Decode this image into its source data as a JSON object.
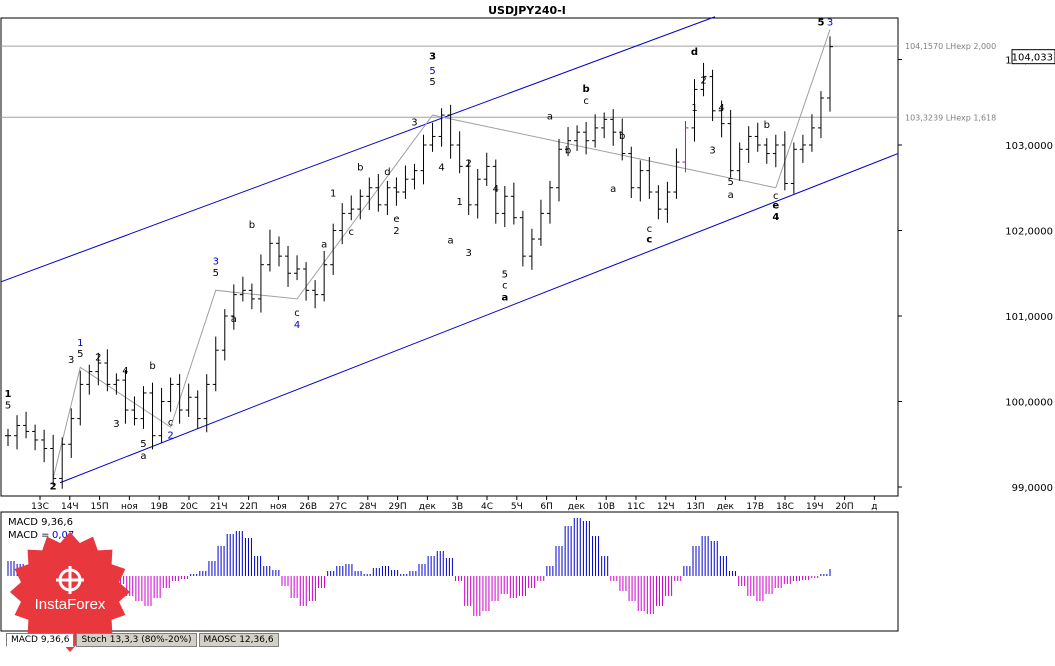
{
  "chart_data": [
    {
      "type": "candlestick",
      "title": "USDJPY240-I",
      "ylim": [
        98.9,
        104.5
      ],
      "price_ticks": [
        "104,0000",
        "103,0000",
        "102,0000",
        "101,0000",
        "100,0000",
        "99,0000"
      ],
      "current_price": "104,033",
      "time_labels": [
        "13С",
        "14Ч",
        "15П",
        "ноя",
        "19В",
        "20С",
        "21Ч",
        "22П",
        "ноя",
        "26В",
        "27С",
        "28Ч",
        "29П",
        "дек",
        "3В",
        "4С",
        "5Ч",
        "6П",
        "дек",
        "10В",
        "11С",
        "12Ч",
        "13П",
        "дек",
        "17В",
        "18С",
        "19Ч",
        "20П",
        "д"
      ],
      "price_path": [
        99.6,
        99.72,
        99.65,
        99.55,
        99.45,
        99.1,
        99.5,
        99.8,
        100.2,
        100.35,
        100.45,
        100.2,
        100.25,
        99.9,
        99.8,
        100.1,
        99.6,
        100.0,
        100.2,
        99.9,
        100.05,
        99.8,
        100.2,
        100.6,
        101.0,
        101.25,
        101.3,
        101.2,
        101.6,
        101.85,
        101.7,
        101.5,
        101.55,
        101.3,
        101.25,
        101.6,
        102.0,
        102.2,
        102.25,
        102.4,
        102.5,
        102.3,
        102.5,
        102.45,
        102.6,
        102.7,
        103.0,
        103.1,
        103.35,
        103.0,
        102.75,
        102.3,
        102.6,
        102.75,
        102.2,
        102.4,
        102.15,
        101.7,
        101.9,
        102.2,
        102.5,
        102.95,
        103.05,
        103.15,
        103.05,
        103.2,
        103.3,
        103.15,
        102.9,
        102.5,
        102.7,
        102.45,
        102.25,
        102.45,
        102.8,
        103.2,
        103.65,
        103.8,
        103.4,
        103.25,
        102.7,
        102.95,
        103.1,
        103.0,
        102.9,
        103.0,
        102.55,
        102.95,
        103.0,
        103.2,
        103.55,
        104.15
      ],
      "macd_label": "MACD 9,36,6",
      "macd_value_label": "MACD =",
      "macd_value": "0,07",
      "macd_values": [
        0.15,
        0.12,
        0.08,
        0.05,
        -0.05,
        -0.12,
        -0.2,
        -0.18,
        -0.1,
        0.05,
        0.1,
        0.08,
        -0.08,
        -0.2,
        -0.25,
        -0.3,
        -0.22,
        -0.12,
        -0.05,
        -0.03,
        0.02,
        0.05,
        0.15,
        0.3,
        0.42,
        0.45,
        0.38,
        0.2,
        0.1,
        0.06,
        -0.1,
        -0.22,
        -0.3,
        -0.25,
        -0.12,
        0.05,
        0.1,
        0.12,
        0.05,
        0.02,
        0.08,
        0.1,
        0.06,
        0.02,
        0.05,
        0.12,
        0.2,
        0.25,
        0.18,
        -0.05,
        -0.3,
        -0.4,
        -0.35,
        -0.25,
        -0.18,
        -0.22,
        -0.2,
        -0.12,
        -0.05,
        0.1,
        0.3,
        0.5,
        0.58,
        0.55,
        0.4,
        0.2,
        -0.05,
        -0.15,
        -0.25,
        -0.35,
        -0.38,
        -0.3,
        -0.2,
        -0.05,
        0.1,
        0.3,
        0.4,
        0.35,
        0.2,
        0.05,
        -0.1,
        -0.2,
        -0.25,
        -0.18,
        -0.12,
        -0.08,
        -0.05,
        -0.04,
        -0.02,
        0.02,
        0.07
      ],
      "levels": [
        {
          "price": 104.157,
          "label": "104,1570 LHexp 2,000"
        },
        {
          "price": 103.3239,
          "label": "103,3239 LHexp 1,618"
        }
      ],
      "colors": {
        "candle": "#000000",
        "channel": "#0000cc",
        "wave_line": "#a0a0a0",
        "wave_blue": "#0000cc",
        "macd_pos": "#0000cc",
        "macd_neg": "#cc00cc",
        "grid_level": "#a0a0a0"
      },
      "wave_labels": [
        {
          "text": "1",
          "index": 0,
          "price": 100.05,
          "color": "black",
          "bold": true
        },
        {
          "text": "5",
          "index": 0,
          "price": 99.92,
          "color": "black"
        },
        {
          "text": "2",
          "index": 5,
          "price": 98.97,
          "color": "black",
          "bold": true
        },
        {
          "text": "1",
          "index": 8,
          "price": 100.65,
          "color": "blue"
        },
        {
          "text": "5",
          "index": 8,
          "price": 100.52,
          "color": "black"
        },
        {
          "text": "3",
          "index": 7,
          "price": 100.45,
          "color": "black"
        },
        {
          "text": "2",
          "index": 10,
          "price": 100.48,
          "color": "black"
        },
        {
          "text": "4",
          "index": 13,
          "price": 100.32,
          "color": "black"
        },
        {
          "text": "3",
          "index": 12,
          "price": 99.7,
          "color": "black"
        },
        {
          "text": "5",
          "index": 15,
          "price": 99.47,
          "color": "black"
        },
        {
          "text": "a",
          "index": 15,
          "price": 99.33,
          "color": "black"
        },
        {
          "text": "b",
          "index": 16,
          "price": 100.38,
          "color": "black"
        },
        {
          "text": "c",
          "index": 18,
          "price": 99.72,
          "color": "black"
        },
        {
          "text": "2",
          "index": 18,
          "price": 99.57,
          "color": "blue"
        },
        {
          "text": "3",
          "index": 23,
          "price": 101.6,
          "color": "blue"
        },
        {
          "text": "5",
          "index": 23,
          "price": 101.47,
          "color": "black"
        },
        {
          "text": "a",
          "index": 25,
          "price": 100.93,
          "color": "black"
        },
        {
          "text": "b",
          "index": 27,
          "price": 102.03,
          "color": "black"
        },
        {
          "text": "c",
          "index": 32,
          "price": 101.0,
          "color": "black"
        },
        {
          "text": "4",
          "index": 32,
          "price": 100.86,
          "color": "blue"
        },
        {
          "text": "1",
          "index": 36,
          "price": 102.4,
          "color": "black"
        },
        {
          "text": "b",
          "index": 39,
          "price": 102.7,
          "color": "black"
        },
        {
          "text": "a",
          "index": 35,
          "price": 101.8,
          "color": "black"
        },
        {
          "text": "c",
          "index": 38,
          "price": 101.95,
          "color": "black"
        },
        {
          "text": "d",
          "index": 42,
          "price": 102.65,
          "color": "black"
        },
        {
          "text": "e",
          "index": 43,
          "price": 102.1,
          "color": "black"
        },
        {
          "text": "2",
          "index": 43,
          "price": 101.96,
          "color": "black"
        },
        {
          "text": "3",
          "index": 47,
          "price": 104.0,
          "color": "black",
          "bold": true
        },
        {
          "text": "5",
          "index": 47,
          "price": 103.83,
          "color": "blue"
        },
        {
          "text": "5",
          "index": 47,
          "price": 103.7,
          "color": "black"
        },
        {
          "text": "3",
          "index": 45,
          "price": 103.23,
          "color": "black"
        },
        {
          "text": "4",
          "index": 48,
          "price": 102.7,
          "color": "black"
        },
        {
          "text": "a",
          "index": 49,
          "price": 101.85,
          "color": "black"
        },
        {
          "text": "2",
          "index": 51,
          "price": 102.75,
          "color": "black"
        },
        {
          "text": "1",
          "index": 50,
          "price": 102.3,
          "color": "black"
        },
        {
          "text": "3",
          "index": 51,
          "price": 101.7,
          "color": "black"
        },
        {
          "text": "4",
          "index": 54,
          "price": 102.45,
          "color": "black"
        },
        {
          "text": "5",
          "index": 55,
          "price": 101.45,
          "color": "black"
        },
        {
          "text": "c",
          "index": 55,
          "price": 101.32,
          "color": "black"
        },
        {
          "text": "a",
          "index": 55,
          "price": 101.18,
          "color": "black",
          "bold": true
        },
        {
          "text": "a",
          "index": 60,
          "price": 103.3,
          "color": "black"
        },
        {
          "text": "b",
          "index": 64,
          "price": 103.62,
          "color": "black",
          "bold": true
        },
        {
          "text": "c",
          "index": 64,
          "price": 103.48,
          "color": "black"
        },
        {
          "text": "b",
          "index": 62,
          "price": 102.9,
          "color": "black"
        },
        {
          "text": "b",
          "index": 68,
          "price": 103.07,
          "color": "black"
        },
        {
          "text": "a",
          "index": 67,
          "price": 102.45,
          "color": "black"
        },
        {
          "text": "c",
          "index": 71,
          "price": 101.98,
          "color": "black"
        },
        {
          "text": "c",
          "index": 71,
          "price": 101.86,
          "color": "black",
          "bold": true
        },
        {
          "text": "d",
          "index": 76,
          "price": 104.05,
          "color": "black",
          "bold": true
        },
        {
          "text": "2",
          "index": 77,
          "price": 103.72,
          "color": "black"
        },
        {
          "text": "1",
          "index": 76,
          "price": 103.4,
          "color": "black"
        },
        {
          "text": "4",
          "index": 79,
          "price": 103.4,
          "color": "black"
        },
        {
          "text": "3",
          "index": 78,
          "price": 102.9,
          "color": "black"
        },
        {
          "text": "5",
          "index": 80,
          "price": 102.53,
          "color": "black"
        },
        {
          "text": "a",
          "index": 80,
          "price": 102.38,
          "color": "black"
        },
        {
          "text": "b",
          "index": 84,
          "price": 103.2,
          "color": "black"
        },
        {
          "text": "c",
          "index": 85,
          "price": 102.37,
          "color": "black"
        },
        {
          "text": "e",
          "index": 85,
          "price": 102.26,
          "color": "black",
          "bold": true
        },
        {
          "text": "4",
          "index": 85,
          "price": 102.12,
          "color": "black",
          "bold": true
        },
        {
          "text": "5",
          "index": 90,
          "price": 104.4,
          "color": "black",
          "bold": true
        },
        {
          "text": "3",
          "index": 91,
          "price": 104.4,
          "color": "blue"
        }
      ]
    }
  ],
  "logo": {
    "name": "InstaForex"
  },
  "tabs": [
    "MACD 9,36,6",
    "Stoch 13,3,3 (80%-20%)",
    "MAOSC 12,36,6"
  ]
}
